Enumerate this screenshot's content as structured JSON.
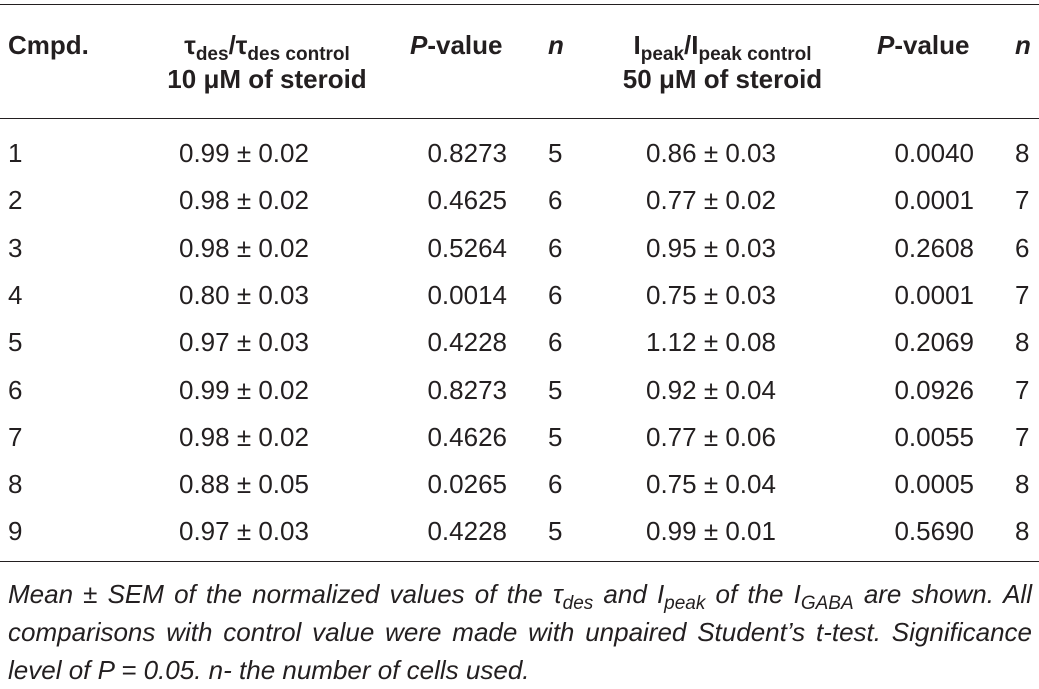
{
  "table": {
    "header": {
      "col1": "Cmpd.",
      "col2_sym": "τ",
      "col2_sub1": "des",
      "col2_slash": "/τ",
      "col2_sub2": "des control",
      "col2_line2": "10 μM of steroid",
      "col3_italic": "P",
      "col3_rest": "-value",
      "col4": "n",
      "col5_sym": "I",
      "col5_sub1": "peak",
      "col5_slash": "/I",
      "col5_sub2": "peak control",
      "col5_line2": "50 μM of steroid",
      "col6_italic": "P",
      "col6_rest": "-value",
      "col7": "n"
    },
    "rows": [
      {
        "cmpd": "1",
        "tau": "0.99 ± 0.02",
        "p1": "0.8273",
        "n1": "5",
        "ipeak": "0.86 ± 0.03",
        "p2": "0.0040",
        "n2": "8"
      },
      {
        "cmpd": "2",
        "tau": "0.98 ± 0.02",
        "p1": "0.4625",
        "n1": "6",
        "ipeak": "0.77 ± 0.02",
        "p2": "0.0001",
        "n2": "7"
      },
      {
        "cmpd": "3",
        "tau": "0.98 ± 0.02",
        "p1": "0.5264",
        "n1": "6",
        "ipeak": "0.95 ± 0.03",
        "p2": "0.2608",
        "n2": "6"
      },
      {
        "cmpd": "4",
        "tau": "0.80 ± 0.03",
        "p1": "0.0014",
        "n1": "6",
        "ipeak": "0.75 ± 0.03",
        "p2": "0.0001",
        "n2": "7"
      },
      {
        "cmpd": "5",
        "tau": "0.97 ± 0.03",
        "p1": "0.4228",
        "n1": "6",
        "ipeak": "1.12 ± 0.08",
        "p2": "0.2069",
        "n2": "8"
      },
      {
        "cmpd": "6",
        "tau": "0.99 ± 0.02",
        "p1": "0.8273",
        "n1": "5",
        "ipeak": "0.92 ± 0.04",
        "p2": "0.0926",
        "n2": "7"
      },
      {
        "cmpd": "7",
        "tau": "0.98 ± 0.02",
        "p1": "0.4626",
        "n1": "5",
        "ipeak": "0.77 ± 0.06",
        "p2": "0.0055",
        "n2": "7"
      },
      {
        "cmpd": "8",
        "tau": "0.88 ± 0.05",
        "p1": "0.0265",
        "n1": "6",
        "ipeak": "0.75 ± 0.04",
        "p2": "0.0005",
        "n2": "8"
      },
      {
        "cmpd": "9",
        "tau": "0.97 ± 0.03",
        "p1": "0.4228",
        "n1": "5",
        "ipeak": "0.99 ± 0.01",
        "p2": "0.5690",
        "n2": "8"
      }
    ]
  },
  "footnote": {
    "t1": "Mean ± SEM of the normalized values of the τ",
    "s1": "des",
    "t2": " and I",
    "s2": "peak",
    "t3": " of the I",
    "s3": "GABA",
    "t4": " are shown. All comparisons with control value were made with unpaired Student’s t-test. Significance level of P = 0.05. n- the number of cells used."
  }
}
